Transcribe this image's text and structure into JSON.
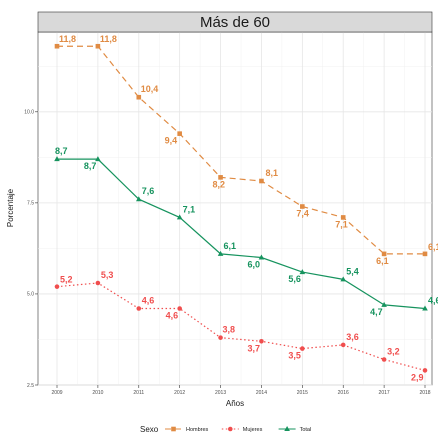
{
  "chart_data": {
    "type": "line",
    "title": "Más de 60",
    "xlabel": "Años",
    "ylabel": "Porcentaje",
    "x": [
      "2009",
      "2010",
      "2011",
      "2012",
      "2013",
      "2014",
      "2015",
      "2016",
      "2017",
      "2018"
    ],
    "yticks": [
      "2.5",
      "5.0",
      "7.5",
      "10.0"
    ],
    "ylim": [
      2.5,
      12.0
    ],
    "grid": true,
    "legend": {
      "title": "Sexo",
      "position": "bottom"
    },
    "series": [
      {
        "name": "Hombres",
        "color": "#e08b43",
        "linestyle": "dashed",
        "marker": "square",
        "values": [
          11.8,
          11.8,
          10.4,
          9.4,
          8.2,
          8.1,
          7.4,
          7.1,
          6.1,
          6.1
        ],
        "labels": [
          "11,8",
          "11,8",
          "10,4",
          "9,4",
          "8,2",
          "8,1",
          "7,4",
          "7,1",
          "6,1",
          "6,1"
        ]
      },
      {
        "name": "Mujeres",
        "color": "#f04e4e",
        "linestyle": "dotted",
        "marker": "circle",
        "values": [
          5.2,
          5.3,
          4.6,
          4.6,
          3.8,
          3.7,
          3.5,
          3.6,
          3.2,
          2.9
        ],
        "labels": [
          "5,2",
          "5,3",
          "4,6",
          "4,6",
          "3,8",
          "3,7",
          "3,5",
          "3,6",
          "3,2",
          "2,9"
        ]
      },
      {
        "name": "Total",
        "color": "#16935e",
        "linestyle": "solid",
        "marker": "triangle",
        "values": [
          8.7,
          8.7,
          7.6,
          7.1,
          6.1,
          6.0,
          5.6,
          5.4,
          4.7,
          4.6
        ],
        "labels": [
          "8,7",
          "8,7",
          "7,6",
          "7,1",
          "6,1",
          "6,0",
          "5,6",
          "5,4",
          "4,7",
          "4,6"
        ]
      }
    ]
  }
}
